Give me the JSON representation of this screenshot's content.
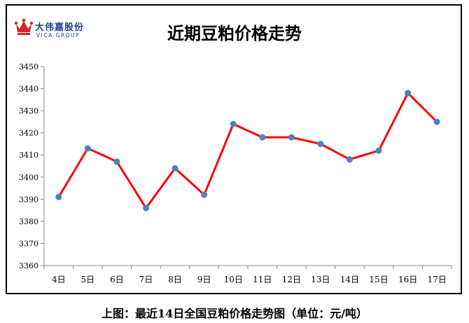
{
  "logo": {
    "name_cn": "大伟嘉股份",
    "name_en": "VICA GROUP"
  },
  "caption": "上图：最近14日全国豆粕价格走势图（单位：元/吨）",
  "chart_data": {
    "type": "line",
    "title": "近期豆粕价格走势",
    "categories": [
      "4日",
      "5日",
      "6日",
      "7日",
      "8日",
      "9日",
      "10日",
      "11日",
      "12日",
      "13日",
      "14日",
      "15日",
      "16日",
      "17日"
    ],
    "series": [
      {
        "values": [
          3391,
          3413,
          3407,
          3386,
          3404,
          3392,
          3424,
          3418,
          3418,
          3415,
          3408,
          3412,
          3438,
          3425
        ]
      }
    ],
    "ylim": [
      3360,
      3450
    ],
    "yticks": [
      3360,
      3370,
      3380,
      3390,
      3400,
      3410,
      3420,
      3430,
      3440,
      3450
    ],
    "grid": false,
    "line_color": "#ff0000",
    "marker_color": "#4f81bd"
  }
}
